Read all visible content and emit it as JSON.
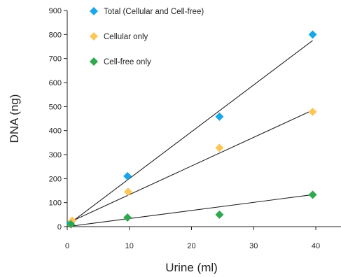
{
  "chart_data": {
    "type": "scatter",
    "title": "",
    "xlabel": "Urine (ml)",
    "ylabel": "DNA (ng)",
    "xlim": [
      0,
      40
    ],
    "ylim": [
      0,
      900
    ],
    "xticks": [
      0,
      10,
      20,
      30,
      40
    ],
    "yticks": [
      0,
      100,
      200,
      300,
      400,
      500,
      600,
      700,
      800,
      900
    ],
    "grid": false,
    "legend_position": "top-left",
    "series": [
      {
        "name": "Total (Cellular and Cell-free)",
        "color": "#1ba6e8",
        "marker": "diamond",
        "x": [
          0.5,
          9.7,
          24.5,
          39.5
        ],
        "y": [
          15,
          210,
          458,
          800
        ],
        "fit_line": {
          "x": [
            0.5,
            39.5
          ],
          "y": [
            15,
            775
          ]
        }
      },
      {
        "name": "Cellular only",
        "color": "#fcc759",
        "marker": "diamond",
        "x": [
          0.8,
          9.8,
          24.5,
          39.5
        ],
        "y": [
          25,
          145,
          328,
          478
        ],
        "fit_line": {
          "x": [
            0.5,
            39.5
          ],
          "y": [
            20,
            485
          ]
        }
      },
      {
        "name": "Cell-free only",
        "color": "#2fa84f",
        "marker": "diamond",
        "x": [
          0.6,
          9.7,
          24.5,
          39.5
        ],
        "y": [
          10,
          38,
          50,
          133
        ],
        "fit_line": {
          "x": [
            0,
            39.5
          ],
          "y": [
            0,
            133
          ]
        }
      }
    ]
  }
}
